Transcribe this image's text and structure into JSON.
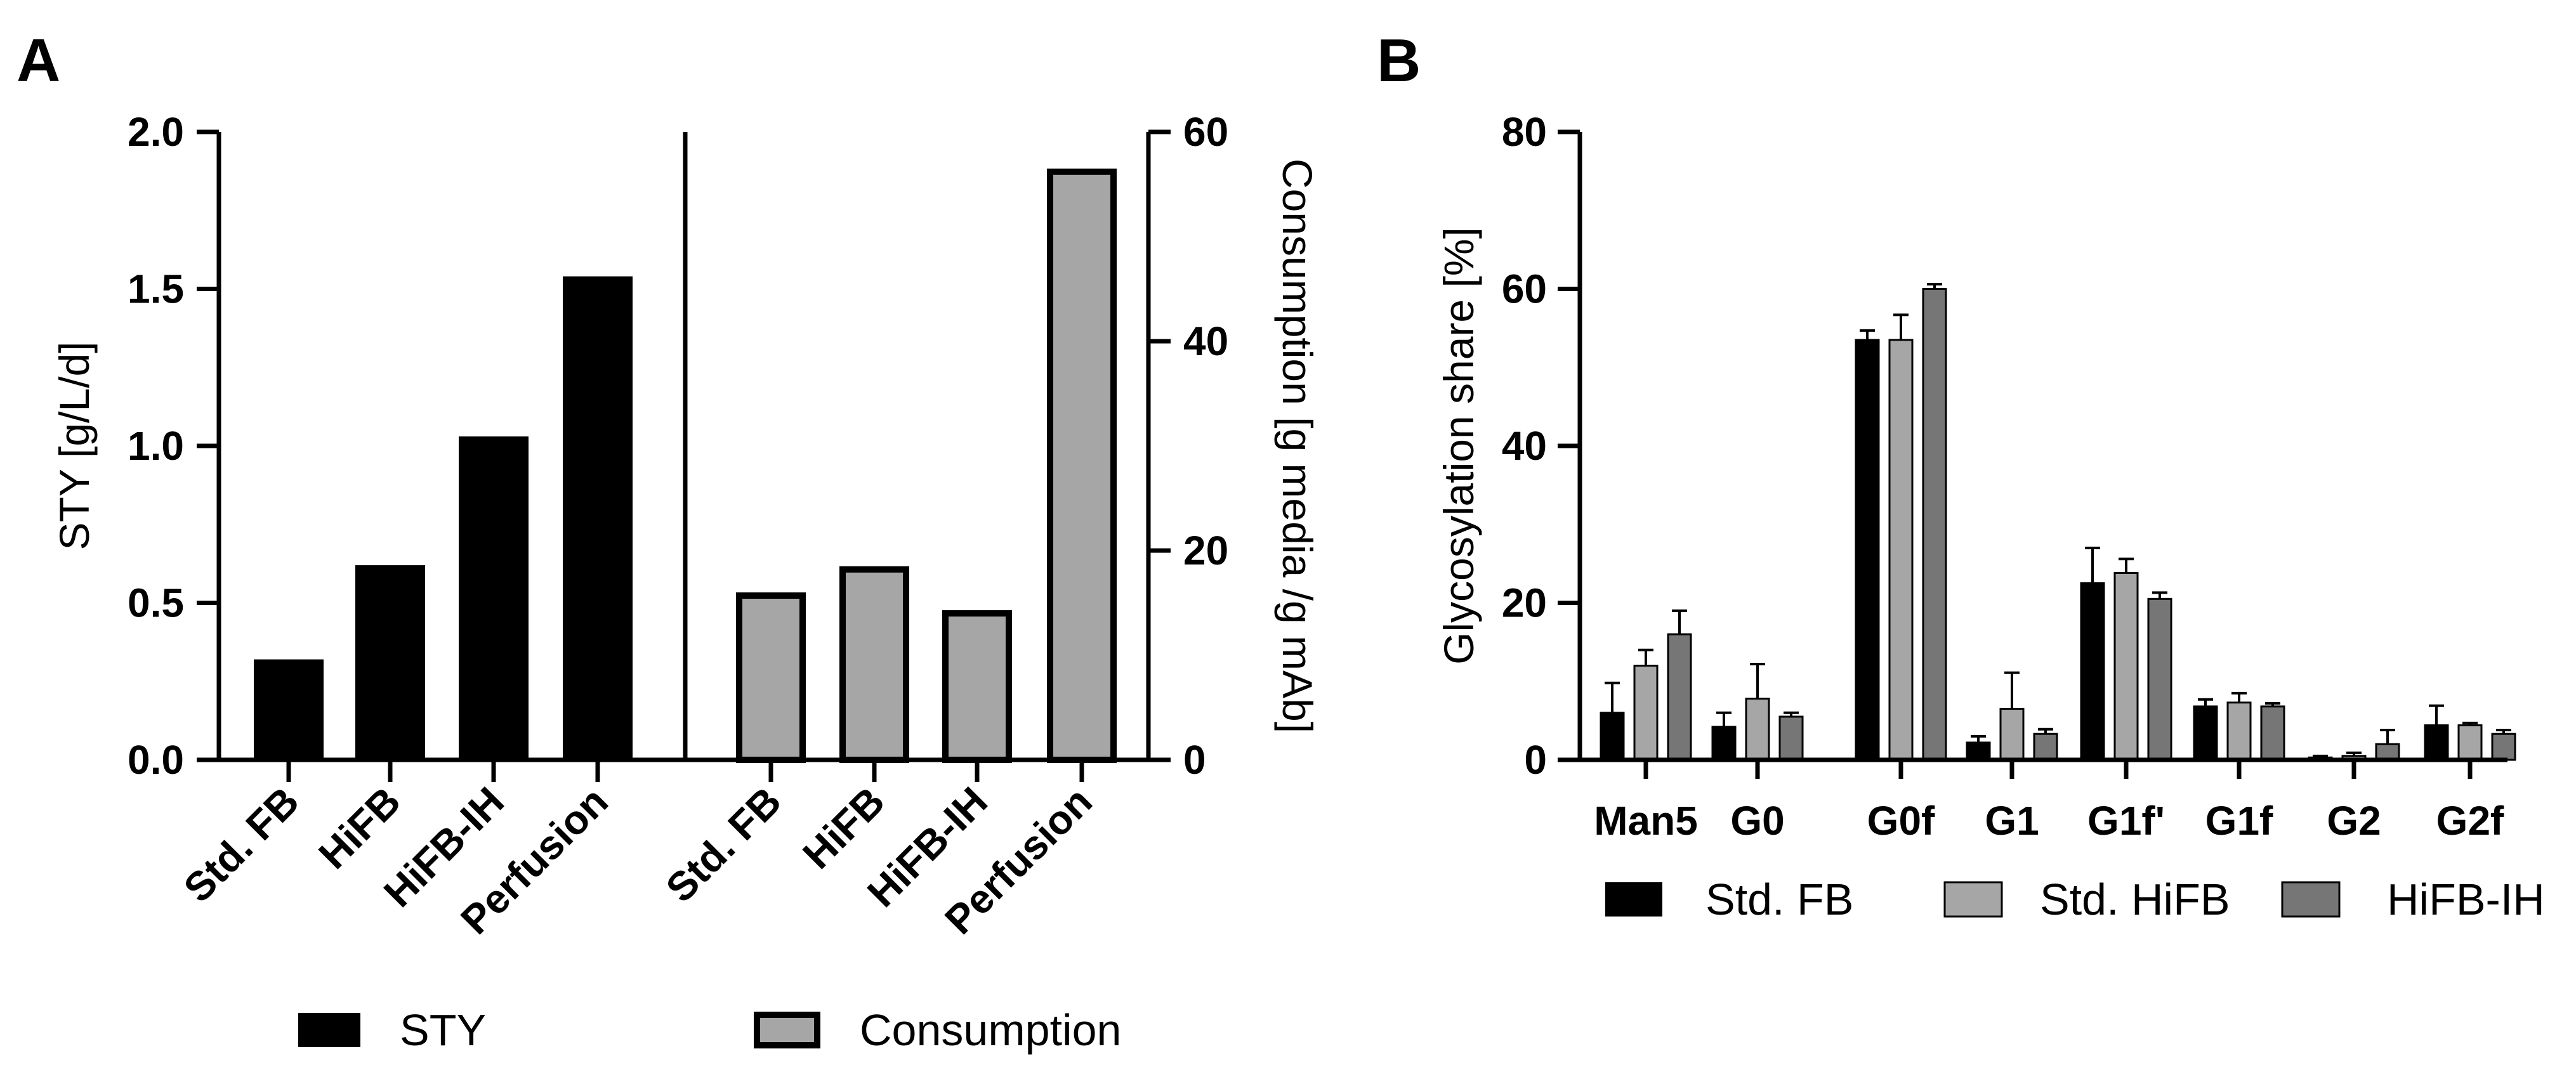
{
  "panels": {
    "a": "A",
    "b": "B"
  },
  "colors": {
    "sty": "#000000",
    "consumption_fill": "#a6a6a6",
    "std_fb": "#000000",
    "std_hifb": "#a6a6a6",
    "hifb_ih": "#767676"
  },
  "chart_data": [
    {
      "type": "bar",
      "panel": "A",
      "title": "",
      "categories": [
        "Std. FB",
        "HiFB",
        "HiFB-IH",
        "Perfusion"
      ],
      "series": [
        {
          "name": "STY",
          "axis": "left",
          "values": [
            0.32,
            0.62,
            1.03,
            1.54
          ]
        },
        {
          "name": "Consumption",
          "axis": "right",
          "values": [
            16,
            18.5,
            14.3,
            56.5
          ]
        }
      ],
      "ylabel_left": "STY [g/L/d]",
      "ylim_left": [
        0,
        2.0
      ],
      "yticks_left": [
        "0.0",
        "0.5",
        "1.0",
        "1.5",
        "2.0"
      ],
      "ylabel_right": "Consumption [g media /g mAb]",
      "ylim_right": [
        0,
        60
      ],
      "yticks_right": [
        "0",
        "20",
        "40",
        "60"
      ],
      "legend": [
        "STY",
        "Consumption"
      ],
      "legend_position": "bottom",
      "grid": false
    },
    {
      "type": "bar",
      "panel": "B",
      "title": "",
      "categories": [
        "Man5",
        "G0",
        "G0f",
        "G1",
        "G1f'",
        "G1f",
        "G2",
        "G2f"
      ],
      "series": [
        {
          "name": "Std. FB",
          "values": [
            6,
            4.2,
            53.5,
            2.2,
            22.5,
            6.8,
            0.3,
            4.4
          ],
          "errors": [
            3.8,
            1.8,
            1.2,
            0.8,
            4.5,
            0.9,
            0.2,
            2.5
          ]
        },
        {
          "name": "Std. HiFB",
          "values": [
            12,
            7.8,
            53.5,
            6.5,
            23.8,
            7.3,
            0.5,
            4.4
          ],
          "errors": [
            2.0,
            4.4,
            3.2,
            4.6,
            1.8,
            1.2,
            0.4,
            0.3
          ]
        },
        {
          "name": "HiFB-IH",
          "values": [
            16,
            5.5,
            60,
            3.3,
            20.5,
            6.8,
            2.0,
            3.3
          ],
          "errors": [
            3.0,
            0.5,
            0.6,
            0.6,
            0.8,
            0.4,
            1.8,
            0.5
          ]
        }
      ],
      "ylabel": "Glycosylation share [%]",
      "ylim": [
        0,
        80
      ],
      "yticks": [
        "0",
        "20",
        "40",
        "60",
        "80"
      ],
      "legend": [
        "Std. FB",
        "Std. HiFB",
        "HiFB-IH"
      ],
      "legend_position": "bottom",
      "grid": false
    }
  ]
}
